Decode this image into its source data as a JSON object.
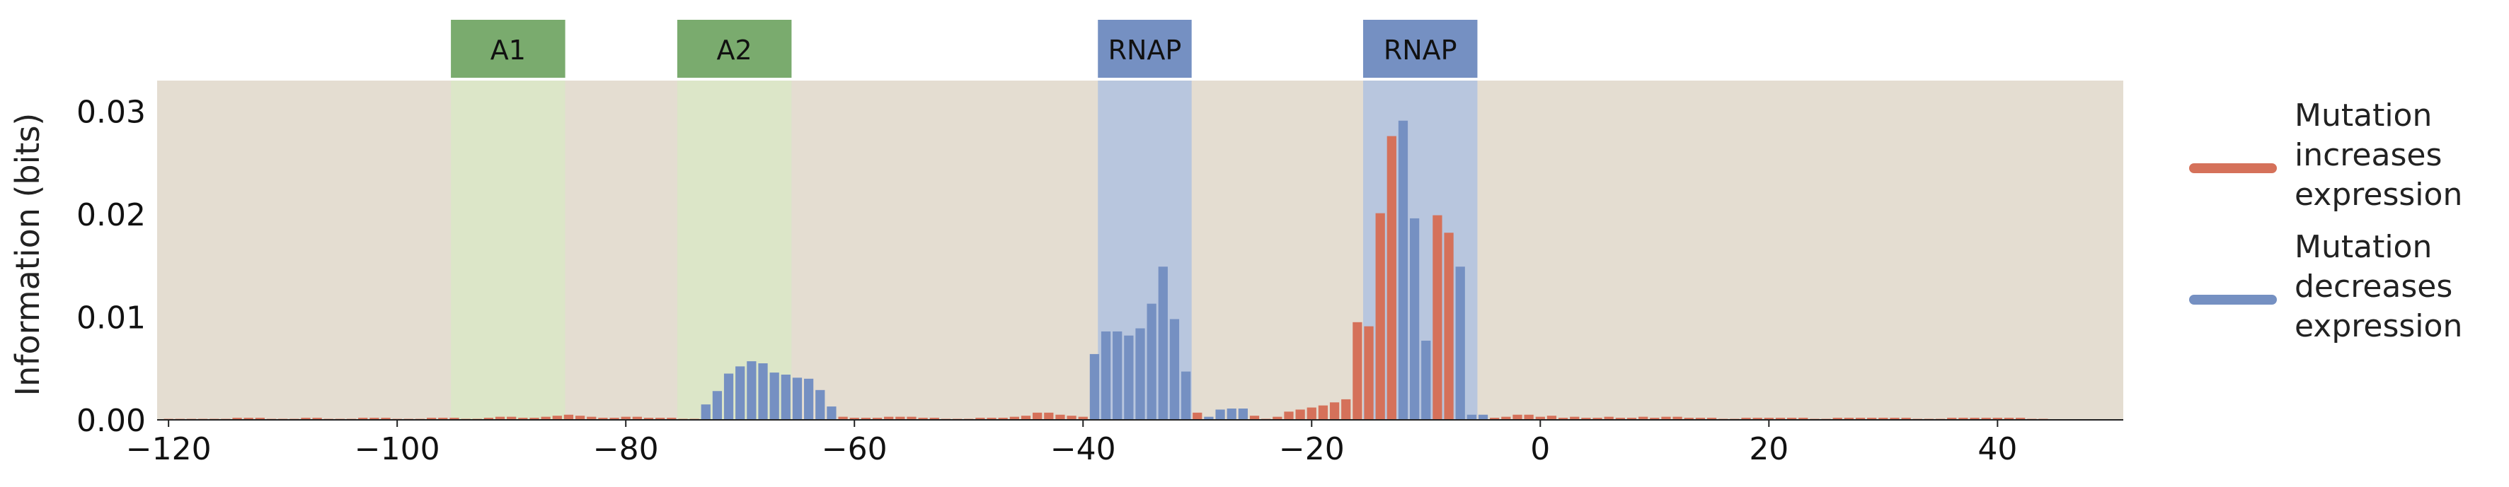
{
  "chart_data": {
    "type": "bar",
    "ylabel": "Information (bits)",
    "xlim": [
      -121,
      51
    ],
    "ylim": [
      0,
      0.033
    ],
    "x_ticks": [
      -120,
      -100,
      -80,
      -60,
      -40,
      -20,
      0,
      20,
      40
    ],
    "x_tick_labels": [
      "−120",
      "−100",
      "−80",
      "−60",
      "−40",
      "−20",
      "0",
      "20",
      "40"
    ],
    "y_ticks": [
      0,
      0.01,
      0.02,
      0.03
    ],
    "y_tick_labels": [
      "0.00",
      "0.01",
      "0.02",
      "0.03"
    ],
    "grid": false,
    "legend_position": "right",
    "colors": {
      "plot_background": "#e4ddd1",
      "increase": "#d5715a",
      "decrease": "#7590c2",
      "activator_band": "#dce6c8",
      "activator_label": "#7aab6e",
      "rnap_band": "#b8c6de",
      "rnap_label": "#7590c2"
    },
    "regions": [
      {
        "label": "A1",
        "kind": "activator",
        "start": -95.3,
        "end": -85.3
      },
      {
        "label": "A2",
        "kind": "activator",
        "start": -75.5,
        "end": -65.5
      },
      {
        "label": "RNAP",
        "kind": "rnap",
        "start": -38.7,
        "end": -30.5
      },
      {
        "label": "RNAP",
        "kind": "rnap",
        "start": -15.5,
        "end": -5.5
      }
    ],
    "series": [
      {
        "name": "Mutation increases expression",
        "key": "increase"
      },
      {
        "name": "Mutation decreases expression",
        "key": "decrease"
      }
    ],
    "legend": [
      {
        "key": "increase",
        "lines": [
          "Mutation",
          "increases",
          "expression"
        ]
      },
      {
        "key": "decrease",
        "lines": [
          "Mutation",
          "decreases",
          "expression"
        ]
      }
    ],
    "positions_start": -120,
    "values": [
      0.0001,
      0.0001,
      0.0001,
      0.0001,
      0.0001,
      0.0001,
      0.0002,
      0.0002,
      0.0002,
      0.0001,
      0.0001,
      0.0001,
      0.0002,
      0.0002,
      0.0001,
      0.0001,
      0.0001,
      0.0002,
      0.0002,
      0.0002,
      0.0001,
      0.0001,
      0.0001,
      0.0002,
      0.0002,
      0.0002,
      0.0001,
      0.0001,
      0.0002,
      0.0003,
      0.0003,
      0.0002,
      0.0002,
      0.0003,
      0.0004,
      0.0005,
      0.0004,
      0.0003,
      0.0002,
      0.0002,
      0.0003,
      0.0003,
      0.0002,
      0.0002,
      0.0002,
      0.0001,
      0.0001,
      0.0015,
      0.0028,
      0.0045,
      0.0052,
      0.0057,
      0.0055,
      0.0046,
      0.0044,
      0.0041,
      0.004,
      0.0029,
      0.0013,
      0.0003,
      0.0002,
      0.0002,
      0.0002,
      0.0003,
      0.0003,
      0.0003,
      0.0002,
      0.0002,
      0.0001,
      0.0001,
      0.0001,
      0.0002,
      0.0002,
      0.0002,
      0.0003,
      0.0004,
      0.0007,
      0.0007,
      0.0005,
      0.0004,
      0.0003,
      0.0064,
      0.0086,
      0.0086,
      0.0082,
      0.0089,
      0.0113,
      0.0149,
      0.0098,
      0.0047,
      0.0007,
      0.0003,
      0.001,
      0.0011,
      0.0011,
      0.0004,
      0.0001,
      0.0003,
      0.0008,
      0.001,
      0.0012,
      0.0014,
      0.0017,
      0.002,
      0.0095,
      0.0091,
      0.0201,
      0.0276,
      0.0291,
      0.0196,
      0.0077,
      0.0199,
      0.0182,
      0.0149,
      0.0005,
      0.0005,
      0.0002,
      0.0003,
      0.0005,
      0.0005,
      0.0003,
      0.0004,
      0.0002,
      0.0003,
      0.0002,
      0.0002,
      0.0003,
      0.0002,
      0.0002,
      0.0003,
      0.0002,
      0.0003,
      0.0003,
      0.0002,
      0.0002,
      0.0002,
      0.0001,
      0.0001,
      0.0002,
      0.0002,
      0.0002,
      0.0002,
      0.0002,
      0.0002,
      0.0001,
      0.0001,
      0.0002,
      0.0002,
      0.0002,
      0.0002,
      0.0002,
      0.0002,
      0.0002,
      0.0001,
      0.0001,
      0.0001,
      0.0002,
      0.0002,
      0.0002,
      0.0002,
      0.0002,
      0.0002,
      0.0002,
      0.0001,
      0.0001
    ],
    "direction": [
      "increase",
      "increase",
      "increase",
      "increase",
      "increase",
      "increase",
      "increase",
      "increase",
      "increase",
      "increase",
      "increase",
      "increase",
      "increase",
      "increase",
      "increase",
      "increase",
      "increase",
      "increase",
      "increase",
      "increase",
      "increase",
      "increase",
      "increase",
      "increase",
      "increase",
      "increase",
      "increase",
      "increase",
      "increase",
      "increase",
      "increase",
      "increase",
      "increase",
      "increase",
      "increase",
      "increase",
      "increase",
      "increase",
      "increase",
      "increase",
      "increase",
      "increase",
      "increase",
      "increase",
      "increase",
      "increase",
      "increase",
      "decrease",
      "decrease",
      "decrease",
      "decrease",
      "decrease",
      "decrease",
      "decrease",
      "decrease",
      "decrease",
      "decrease",
      "decrease",
      "decrease",
      "increase",
      "increase",
      "increase",
      "increase",
      "increase",
      "increase",
      "increase",
      "increase",
      "increase",
      "increase",
      "increase",
      "increase",
      "increase",
      "increase",
      "increase",
      "increase",
      "increase",
      "increase",
      "increase",
      "increase",
      "increase",
      "increase",
      "decrease",
      "decrease",
      "decrease",
      "decrease",
      "decrease",
      "decrease",
      "decrease",
      "decrease",
      "decrease",
      "increase",
      "decrease",
      "decrease",
      "decrease",
      "decrease",
      "increase",
      "increase",
      "increase",
      "increase",
      "increase",
      "increase",
      "increase",
      "increase",
      "increase",
      "increase",
      "increase",
      "increase",
      "increase",
      "decrease",
      "decrease",
      "decrease",
      "increase",
      "increase",
      "decrease",
      "decrease",
      "decrease",
      "increase",
      "increase",
      "increase",
      "increase",
      "increase",
      "increase",
      "increase",
      "increase",
      "increase",
      "increase",
      "increase",
      "increase",
      "increase",
      "increase",
      "increase",
      "increase",
      "increase",
      "increase",
      "increase",
      "increase",
      "increase",
      "increase",
      "increase",
      "increase",
      "increase",
      "increase",
      "increase",
      "increase",
      "increase",
      "increase",
      "increase",
      "increase",
      "increase",
      "increase",
      "increase",
      "increase",
      "increase",
      "increase",
      "increase",
      "increase",
      "increase",
      "increase",
      "increase",
      "increase",
      "increase",
      "increase",
      "increase",
      "increase",
      "increase",
      "increase",
      "increase",
      "increase"
    ]
  }
}
